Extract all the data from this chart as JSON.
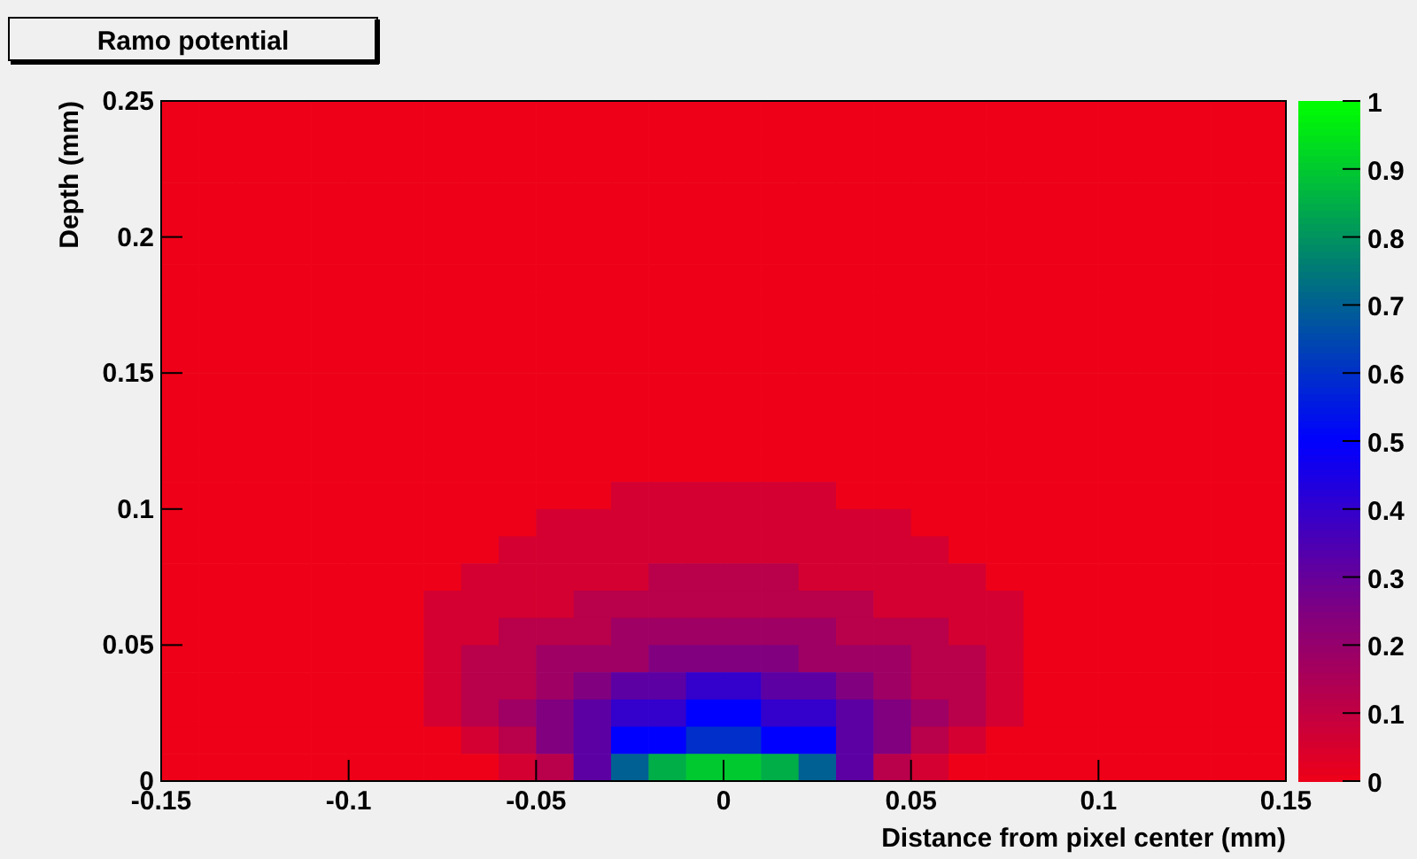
{
  "chart_data": {
    "type": "heatmap",
    "title": "Ramo potential",
    "xlabel": "Distance from pixel center (mm)",
    "ylabel": "Depth (mm)",
    "x": [
      -0.145,
      -0.135,
      -0.125,
      -0.115,
      -0.105,
      -0.095,
      -0.085,
      -0.075,
      -0.065,
      -0.055,
      -0.045,
      -0.035,
      -0.025,
      -0.015,
      -0.005,
      0.005,
      0.015,
      0.025,
      0.035,
      0.045,
      0.055,
      0.065,
      0.075,
      0.085,
      0.095,
      0.105,
      0.115,
      0.125,
      0.135,
      0.145
    ],
    "y": [
      0.245,
      0.235,
      0.225,
      0.215,
      0.205,
      0.195,
      0.185,
      0.175,
      0.165,
      0.155,
      0.145,
      0.135,
      0.125,
      0.115,
      0.105,
      0.095,
      0.085,
      0.075,
      0.065,
      0.055,
      0.045,
      0.035,
      0.025,
      0.015,
      0.005
    ],
    "xlim": [
      -0.15,
      0.15
    ],
    "xticks": [
      -0.15,
      -0.1,
      -0.05,
      0,
      0.05,
      0.1,
      0.15
    ],
    "ylim": [
      0,
      0.25
    ],
    "yticks": [
      0,
      0.05,
      0.1,
      0.15,
      0.2,
      0.25
    ],
    "clim": [
      0,
      1
    ],
    "cticks": [
      0,
      0.1,
      0.2,
      0.3,
      0.4,
      0.5,
      0.6,
      0.7,
      0.8,
      0.9,
      1
    ],
    "cells": [
      [
        0,
        0,
        0,
        0,
        0,
        0,
        0,
        0,
        0,
        0,
        0,
        0,
        0,
        0,
        0,
        0,
        0,
        0,
        0,
        0,
        0,
        0,
        0,
        0,
        0,
        0,
        0,
        0,
        0,
        0
      ],
      [
        0,
        0,
        0,
        0,
        0,
        0,
        0,
        0,
        0,
        0,
        0,
        0,
        0,
        0,
        0,
        0,
        0,
        0,
        0,
        0,
        0,
        0,
        0,
        0,
        0,
        0,
        0,
        0,
        0,
        0
      ],
      [
        0,
        0,
        0,
        0,
        0,
        0,
        0,
        0,
        0,
        0,
        0,
        0,
        0,
        0,
        0,
        0,
        0,
        0,
        0,
        0,
        0,
        0,
        0,
        0,
        0,
        0,
        0,
        0,
        0,
        0
      ],
      [
        0,
        0,
        0,
        0,
        0,
        0,
        0,
        0,
        0,
        0,
        0,
        0,
        0,
        0,
        0,
        0,
        0,
        0,
        0,
        0,
        0,
        0,
        0,
        0,
        0,
        0,
        0,
        0,
        0,
        0
      ],
      [
        0,
        0,
        0,
        0,
        0,
        0,
        0,
        0,
        0,
        0,
        0,
        0,
        0,
        0,
        0,
        0,
        0,
        0,
        0,
        0,
        0,
        0,
        0,
        0,
        0,
        0,
        0,
        0,
        0,
        0
      ],
      [
        0,
        0,
        0,
        0,
        0,
        0,
        0,
        0,
        0,
        0,
        0,
        0,
        0,
        0,
        0,
        0,
        0,
        0,
        0,
        0,
        0,
        0,
        0,
        0,
        0,
        0,
        0,
        0,
        0,
        0
      ],
      [
        0,
        0,
        0,
        0,
        0,
        0,
        0,
        0,
        0,
        0,
        0,
        0,
        0,
        0,
        0,
        0,
        0,
        0,
        0,
        0,
        0,
        0,
        0,
        0,
        0,
        0,
        0,
        0,
        0,
        0
      ],
      [
        0,
        0,
        0,
        0,
        0,
        0,
        0,
        0,
        0,
        0,
        0,
        0,
        0,
        0,
        0,
        0,
        0,
        0,
        0,
        0,
        0,
        0,
        0,
        0,
        0,
        0,
        0,
        0,
        0,
        0
      ],
      [
        0,
        0,
        0,
        0,
        0,
        0,
        0,
        0,
        0,
        0,
        0,
        0,
        0,
        0,
        0,
        0,
        0,
        0,
        0,
        0,
        0,
        0,
        0,
        0,
        0,
        0,
        0,
        0,
        0,
        0
      ],
      [
        0,
        0,
        0,
        0,
        0,
        0,
        0,
        0,
        0,
        0,
        0,
        0,
        0,
        0,
        0,
        0,
        0,
        0,
        0,
        0,
        0,
        0,
        0,
        0,
        0,
        0,
        0,
        0,
        0,
        0
      ],
      [
        0,
        0,
        0,
        0,
        0,
        0,
        0,
        0,
        0,
        0,
        0,
        0,
        0,
        0,
        0,
        0,
        0,
        0,
        0,
        0,
        0,
        0,
        0,
        0,
        0,
        0,
        0,
        0,
        0,
        0
      ],
      [
        0,
        0,
        0,
        0,
        0,
        0,
        0,
        0,
        0,
        0,
        0,
        0,
        0,
        0,
        0,
        0,
        0,
        0,
        0,
        0,
        0,
        0,
        0,
        0,
        0,
        0,
        0,
        0,
        0,
        0
      ],
      [
        0,
        0,
        0,
        0,
        0,
        0,
        0,
        0,
        0,
        0,
        0,
        0,
        0,
        0,
        0,
        0,
        0,
        0,
        0,
        0,
        0,
        0,
        0,
        0,
        0,
        0,
        0,
        0,
        0,
        0
      ],
      [
        0,
        0,
        0,
        0,
        0,
        0,
        0,
        0,
        0,
        0,
        0,
        0,
        0,
        0,
        0,
        0,
        0,
        0,
        0,
        0,
        0,
        0,
        0,
        0,
        0,
        0,
        0,
        0,
        0,
        0
      ],
      [
        0,
        0,
        0,
        0,
        0,
        0,
        0,
        0,
        0,
        0,
        0,
        0,
        0.06,
        0.06,
        0.06,
        0.06,
        0.06,
        0.06,
        0,
        0,
        0,
        0,
        0,
        0,
        0,
        0,
        0,
        0,
        0,
        0
      ],
      [
        0,
        0,
        0,
        0,
        0,
        0,
        0,
        0,
        0,
        0,
        0.06,
        0.06,
        0.06,
        0.06,
        0.06,
        0.06,
        0.06,
        0.06,
        0.06,
        0.06,
        0,
        0,
        0,
        0,
        0,
        0,
        0,
        0,
        0,
        0
      ],
      [
        0,
        0,
        0,
        0,
        0,
        0,
        0,
        0,
        0,
        0.06,
        0.06,
        0.06,
        0.06,
        0.06,
        0.06,
        0.06,
        0.06,
        0.06,
        0.06,
        0.06,
        0.06,
        0,
        0,
        0,
        0,
        0,
        0,
        0,
        0,
        0
      ],
      [
        0,
        0,
        0,
        0,
        0,
        0,
        0,
        0,
        0.06,
        0.06,
        0.06,
        0.06,
        0.06,
        0.12,
        0.12,
        0.12,
        0.12,
        0.06,
        0.06,
        0.06,
        0.06,
        0.06,
        0,
        0,
        0,
        0,
        0,
        0,
        0,
        0
      ],
      [
        0,
        0,
        0,
        0,
        0,
        0,
        0,
        0.06,
        0.06,
        0.06,
        0.06,
        0.12,
        0.12,
        0.12,
        0.12,
        0.12,
        0.12,
        0.12,
        0.12,
        0.06,
        0.06,
        0.06,
        0.06,
        0,
        0,
        0,
        0,
        0,
        0,
        0
      ],
      [
        0,
        0,
        0,
        0,
        0,
        0,
        0,
        0.06,
        0.06,
        0.12,
        0.12,
        0.12,
        0.18,
        0.18,
        0.18,
        0.18,
        0.18,
        0.18,
        0.12,
        0.12,
        0.12,
        0.06,
        0.06,
        0,
        0,
        0,
        0,
        0,
        0,
        0
      ],
      [
        0,
        0,
        0,
        0,
        0,
        0,
        0,
        0.06,
        0.12,
        0.12,
        0.18,
        0.18,
        0.18,
        0.25,
        0.25,
        0.25,
        0.25,
        0.18,
        0.18,
        0.18,
        0.12,
        0.12,
        0.06,
        0,
        0,
        0,
        0,
        0,
        0,
        0
      ],
      [
        0,
        0,
        0,
        0,
        0,
        0,
        0,
        0.06,
        0.12,
        0.12,
        0.18,
        0.25,
        0.32,
        0.32,
        0.4,
        0.4,
        0.32,
        0.32,
        0.25,
        0.18,
        0.12,
        0.12,
        0.06,
        0,
        0,
        0,
        0,
        0,
        0,
        0
      ],
      [
        0,
        0,
        0,
        0,
        0,
        0,
        0,
        0.06,
        0.12,
        0.18,
        0.25,
        0.32,
        0.4,
        0.4,
        0.5,
        0.5,
        0.4,
        0.4,
        0.32,
        0.25,
        0.18,
        0.12,
        0.06,
        0,
        0,
        0,
        0,
        0,
        0,
        0
      ],
      [
        0,
        0,
        0,
        0,
        0,
        0,
        0,
        0,
        0.06,
        0.12,
        0.25,
        0.32,
        0.5,
        0.5,
        0.6,
        0.6,
        0.5,
        0.5,
        0.32,
        0.25,
        0.12,
        0.06,
        0,
        0,
        0,
        0,
        0,
        0,
        0,
        0
      ],
      [
        0,
        0,
        0,
        0,
        0,
        0,
        0,
        0,
        0,
        0.06,
        0.12,
        0.32,
        0.7,
        0.85,
        0.9,
        0.9,
        0.85,
        0.7,
        0.32,
        0.12,
        0.06,
        0,
        0,
        0,
        0,
        0,
        0,
        0,
        0,
        0
      ]
    ]
  }
}
